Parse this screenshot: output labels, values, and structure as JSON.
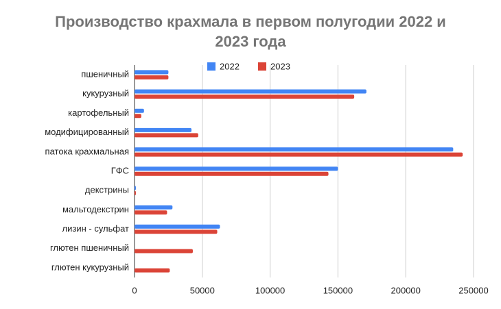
{
  "chart_data": {
    "type": "hbar",
    "title": [
      "Производство крахмала в первом полугодии 2022 и",
      "2023 года"
    ],
    "categories": [
      "пшеничный",
      "кукурузный",
      "картофельный",
      "модифицированный",
      "патока крахмальная",
      "ГФС",
      "декстрины",
      "мальтодекстрин",
      "лизин - сульфат",
      "глютен пшеничный",
      "глютен кукурузный"
    ],
    "series": [
      {
        "name": "2022",
        "color": "#4285f4",
        "values": [
          25000,
          171000,
          7000,
          42000,
          235000,
          150000,
          1000,
          28000,
          63000,
          0,
          0
        ]
      },
      {
        "name": "2023",
        "color": "#db4437",
        "values": [
          25000,
          162000,
          5000,
          47000,
          242000,
          143000,
          1000,
          24000,
          61000,
          43000,
          26000
        ]
      }
    ],
    "xlim": [
      0,
      250000
    ],
    "xticks": [
      0,
      50000,
      100000,
      150000,
      200000,
      250000
    ],
    "grid": true,
    "legend": "top"
  }
}
